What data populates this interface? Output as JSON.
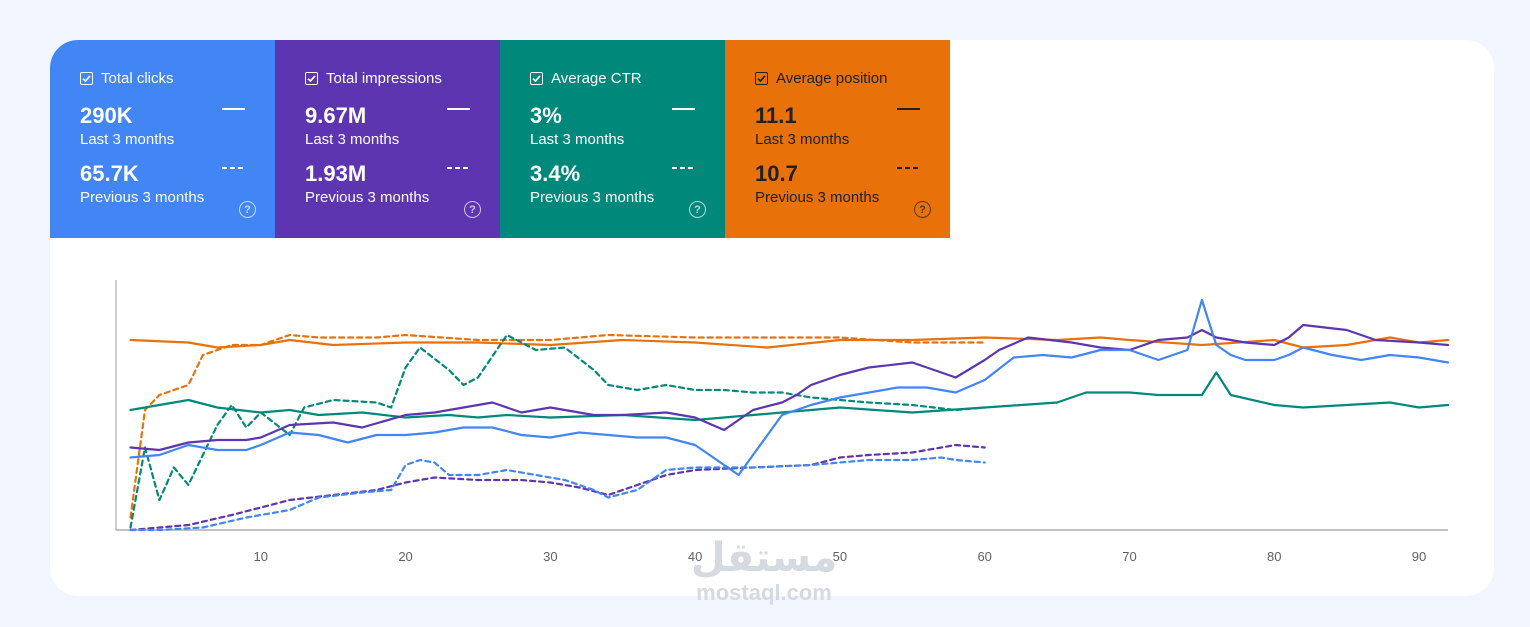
{
  "metrics": [
    {
      "id": "clicks",
      "title": "Total clicks",
      "current": "290K",
      "current_label": "Last 3 months",
      "previous": "65.7K",
      "previous_label": "Previous 3 months",
      "color": "#4285f4",
      "dark": false
    },
    {
      "id": "impressions",
      "title": "Total impressions",
      "current": "9.67M",
      "current_label": "Last 3 months",
      "previous": "1.93M",
      "previous_label": "Previous 3 months",
      "color": "#5e35b1",
      "dark": false
    },
    {
      "id": "ctr",
      "title": "Average CTR",
      "current": "3%",
      "current_label": "Last 3 months",
      "previous": "3.4%",
      "previous_label": "Previous 3 months",
      "color": "#00897b",
      "dark": false
    },
    {
      "id": "position",
      "title": "Average position",
      "current": "11.1",
      "current_label": "Last 3 months",
      "previous": "10.7",
      "previous_label": "Previous 3 months",
      "color": "#e8710a",
      "dark": true
    }
  ],
  "help_glyph": "?",
  "watermark": {
    "arabic": "مستقل",
    "latin": "mostaql.com"
  },
  "chart_data": {
    "type": "line",
    "title": "",
    "xlabel": "",
    "ylabel": "",
    "xlim": [
      0,
      92
    ],
    "ylim": [
      0,
      100
    ],
    "x_ticks": [
      10,
      20,
      30,
      40,
      50,
      60,
      70,
      80,
      90
    ],
    "note": "y values are relative 0-100 because each metric is plotted on its own hidden axis",
    "series": [
      {
        "name": "Average position (Last 3 months)",
        "style": "solid",
        "color": "#e8710a",
        "points": [
          [
            1,
            76
          ],
          [
            5,
            75
          ],
          [
            7,
            73
          ],
          [
            10,
            74
          ],
          [
            12,
            76
          ],
          [
            15,
            74
          ],
          [
            20,
            75
          ],
          [
            25,
            75
          ],
          [
            30,
            74
          ],
          [
            35,
            76
          ],
          [
            40,
            75
          ],
          [
            45,
            73
          ],
          [
            50,
            76
          ],
          [
            55,
            76
          ],
          [
            60,
            77
          ],
          [
            65,
            76
          ],
          [
            68,
            77
          ],
          [
            70,
            76
          ],
          [
            75,
            74
          ],
          [
            80,
            76
          ],
          [
            82,
            73
          ],
          [
            85,
            74
          ],
          [
            88,
            77
          ],
          [
            90,
            75
          ],
          [
            92,
            76
          ]
        ]
      },
      {
        "name": "Average position (Previous 3 months)",
        "style": "dashed",
        "color": "#e8710a",
        "points": [
          [
            1,
            5
          ],
          [
            2,
            48
          ],
          [
            3,
            54
          ],
          [
            5,
            58
          ],
          [
            6,
            70
          ],
          [
            8,
            74
          ],
          [
            10,
            74
          ],
          [
            12,
            78
          ],
          [
            14,
            77
          ],
          [
            18,
            77
          ],
          [
            20,
            78
          ],
          [
            25,
            76
          ],
          [
            30,
            76
          ],
          [
            34,
            78
          ],
          [
            40,
            77
          ],
          [
            45,
            77
          ],
          [
            50,
            77
          ],
          [
            55,
            75
          ],
          [
            60,
            75
          ]
        ]
      },
      {
        "name": "Average CTR (Last 3 months)",
        "style": "solid",
        "color": "#00897b",
        "points": [
          [
            1,
            48
          ],
          [
            3,
            50
          ],
          [
            5,
            52
          ],
          [
            7,
            49
          ],
          [
            10,
            47
          ],
          [
            12,
            48
          ],
          [
            14,
            46
          ],
          [
            17,
            47
          ],
          [
            20,
            45
          ],
          [
            23,
            46
          ],
          [
            25,
            45
          ],
          [
            27,
            46
          ],
          [
            30,
            45
          ],
          [
            35,
            46
          ],
          [
            40,
            44
          ],
          [
            42,
            45
          ],
          [
            44,
            46
          ],
          [
            46,
            47
          ],
          [
            48,
            48
          ],
          [
            50,
            49
          ],
          [
            55,
            47
          ],
          [
            60,
            49
          ],
          [
            65,
            51
          ],
          [
            67,
            55
          ],
          [
            70,
            55
          ],
          [
            72,
            54
          ],
          [
            75,
            54
          ],
          [
            76,
            63
          ],
          [
            77,
            54
          ],
          [
            80,
            50
          ],
          [
            82,
            49
          ],
          [
            85,
            50
          ],
          [
            88,
            51
          ],
          [
            90,
            49
          ],
          [
            92,
            50
          ]
        ]
      },
      {
        "name": "Average CTR (Previous 3 months)",
        "style": "dashed",
        "color": "#00897b",
        "points": [
          [
            1,
            1
          ],
          [
            2,
            33
          ],
          [
            3,
            12
          ],
          [
            4,
            25
          ],
          [
            5,
            18
          ],
          [
            7,
            42
          ],
          [
            8,
            50
          ],
          [
            9,
            41
          ],
          [
            10,
            47
          ],
          [
            12,
            38
          ],
          [
            13,
            49
          ],
          [
            15,
            52
          ],
          [
            18,
            51
          ],
          [
            19,
            49
          ],
          [
            20,
            65
          ],
          [
            21,
            73
          ],
          [
            23,
            64
          ],
          [
            24,
            58
          ],
          [
            25,
            61
          ],
          [
            27,
            78
          ],
          [
            29,
            72
          ],
          [
            31,
            73
          ],
          [
            33,
            64
          ],
          [
            34,
            58
          ],
          [
            36,
            56
          ],
          [
            38,
            58
          ],
          [
            40,
            56
          ],
          [
            42,
            56
          ],
          [
            44,
            55
          ],
          [
            46,
            55
          ],
          [
            48,
            53
          ],
          [
            50,
            52
          ],
          [
            52,
            51
          ],
          [
            55,
            50
          ],
          [
            58,
            48
          ],
          [
            60,
            49
          ]
        ]
      },
      {
        "name": "Total impressions (Last 3 months)",
        "style": "solid",
        "color": "#5e35b1",
        "points": [
          [
            1,
            33
          ],
          [
            3,
            32
          ],
          [
            5,
            35
          ],
          [
            7,
            36
          ],
          [
            9,
            36
          ],
          [
            10,
            37
          ],
          [
            12,
            42
          ],
          [
            15,
            43
          ],
          [
            17,
            41
          ],
          [
            20,
            46
          ],
          [
            22,
            47
          ],
          [
            24,
            49
          ],
          [
            26,
            51
          ],
          [
            28,
            47
          ],
          [
            30,
            49
          ],
          [
            33,
            46
          ],
          [
            35,
            46
          ],
          [
            38,
            47
          ],
          [
            40,
            45
          ],
          [
            42,
            40
          ],
          [
            44,
            48
          ],
          [
            46,
            51
          ],
          [
            47,
            54
          ],
          [
            48,
            58
          ],
          [
            50,
            62
          ],
          [
            52,
            65
          ],
          [
            55,
            67
          ],
          [
            57,
            63
          ],
          [
            58,
            61
          ],
          [
            60,
            68
          ],
          [
            61,
            72
          ],
          [
            63,
            77
          ],
          [
            66,
            75
          ],
          [
            68,
            73
          ],
          [
            70,
            72
          ],
          [
            72,
            76
          ],
          [
            74,
            77
          ],
          [
            75,
            80
          ],
          [
            76,
            77
          ],
          [
            78,
            75
          ],
          [
            80,
            74
          ],
          [
            81,
            77
          ],
          [
            82,
            82
          ],
          [
            85,
            80
          ],
          [
            87,
            76
          ],
          [
            90,
            75
          ],
          [
            92,
            74
          ]
        ]
      },
      {
        "name": "Total impressions (Previous 3 months)",
        "style": "dashed",
        "color": "#5e35b1",
        "points": [
          [
            1,
            0
          ],
          [
            3,
            1
          ],
          [
            5,
            2
          ],
          [
            8,
            6
          ],
          [
            10,
            9
          ],
          [
            12,
            12
          ],
          [
            15,
            14
          ],
          [
            18,
            16
          ],
          [
            20,
            19
          ],
          [
            22,
            21
          ],
          [
            25,
            20
          ],
          [
            28,
            20
          ],
          [
            30,
            19
          ],
          [
            32,
            17
          ],
          [
            34,
            14
          ],
          [
            36,
            18
          ],
          [
            38,
            22
          ],
          [
            40,
            24
          ],
          [
            44,
            25
          ],
          [
            48,
            26
          ],
          [
            50,
            29
          ],
          [
            52,
            30
          ],
          [
            55,
            31
          ],
          [
            57,
            33
          ],
          [
            58,
            34
          ],
          [
            60,
            33
          ]
        ]
      },
      {
        "name": "Total clicks (Last 3 months)",
        "style": "solid",
        "color": "#4285f4",
        "points": [
          [
            1,
            29
          ],
          [
            3,
            30
          ],
          [
            5,
            34
          ],
          [
            7,
            32
          ],
          [
            9,
            32
          ],
          [
            10,
            34
          ],
          [
            12,
            39
          ],
          [
            14,
            38
          ],
          [
            16,
            35
          ],
          [
            18,
            38
          ],
          [
            20,
            38
          ],
          [
            22,
            39
          ],
          [
            24,
            41
          ],
          [
            26,
            41
          ],
          [
            28,
            38
          ],
          [
            30,
            37
          ],
          [
            32,
            39
          ],
          [
            34,
            38
          ],
          [
            36,
            37
          ],
          [
            38,
            37
          ],
          [
            40,
            34
          ],
          [
            42,
            26
          ],
          [
            43,
            22
          ],
          [
            44,
            30
          ],
          [
            46,
            46
          ],
          [
            48,
            50
          ],
          [
            50,
            53
          ],
          [
            52,
            55
          ],
          [
            54,
            57
          ],
          [
            56,
            57
          ],
          [
            58,
            55
          ],
          [
            60,
            60
          ],
          [
            62,
            69
          ],
          [
            64,
            70
          ],
          [
            66,
            69
          ],
          [
            68,
            72
          ],
          [
            70,
            72
          ],
          [
            71,
            70
          ],
          [
            72,
            68
          ],
          [
            74,
            72
          ],
          [
            75,
            92
          ],
          [
            76,
            74
          ],
          [
            77,
            70
          ],
          [
            78,
            68
          ],
          [
            80,
            68
          ],
          [
            81,
            70
          ],
          [
            82,
            73
          ],
          [
            84,
            70
          ],
          [
            86,
            68
          ],
          [
            88,
            70
          ],
          [
            90,
            69
          ],
          [
            92,
            67
          ]
        ]
      },
      {
        "name": "Total clicks (Previous 3 months)",
        "style": "dashed",
        "color": "#4285f4",
        "points": [
          [
            1,
            0
          ],
          [
            3,
            0
          ],
          [
            6,
            1
          ],
          [
            9,
            5
          ],
          [
            12,
            8
          ],
          [
            14,
            13
          ],
          [
            17,
            15
          ],
          [
            19,
            16
          ],
          [
            20,
            26
          ],
          [
            21,
            28
          ],
          [
            22,
            27
          ],
          [
            23,
            22
          ],
          [
            25,
            22
          ],
          [
            27,
            24
          ],
          [
            29,
            22
          ],
          [
            31,
            20
          ],
          [
            33,
            16
          ],
          [
            34,
            13
          ],
          [
            36,
            16
          ],
          [
            38,
            24
          ],
          [
            40,
            25
          ],
          [
            44,
            25
          ],
          [
            48,
            26
          ],
          [
            50,
            27
          ],
          [
            52,
            28
          ],
          [
            55,
            28
          ],
          [
            57,
            29
          ],
          [
            58,
            28
          ],
          [
            60,
            27
          ]
        ]
      }
    ]
  }
}
